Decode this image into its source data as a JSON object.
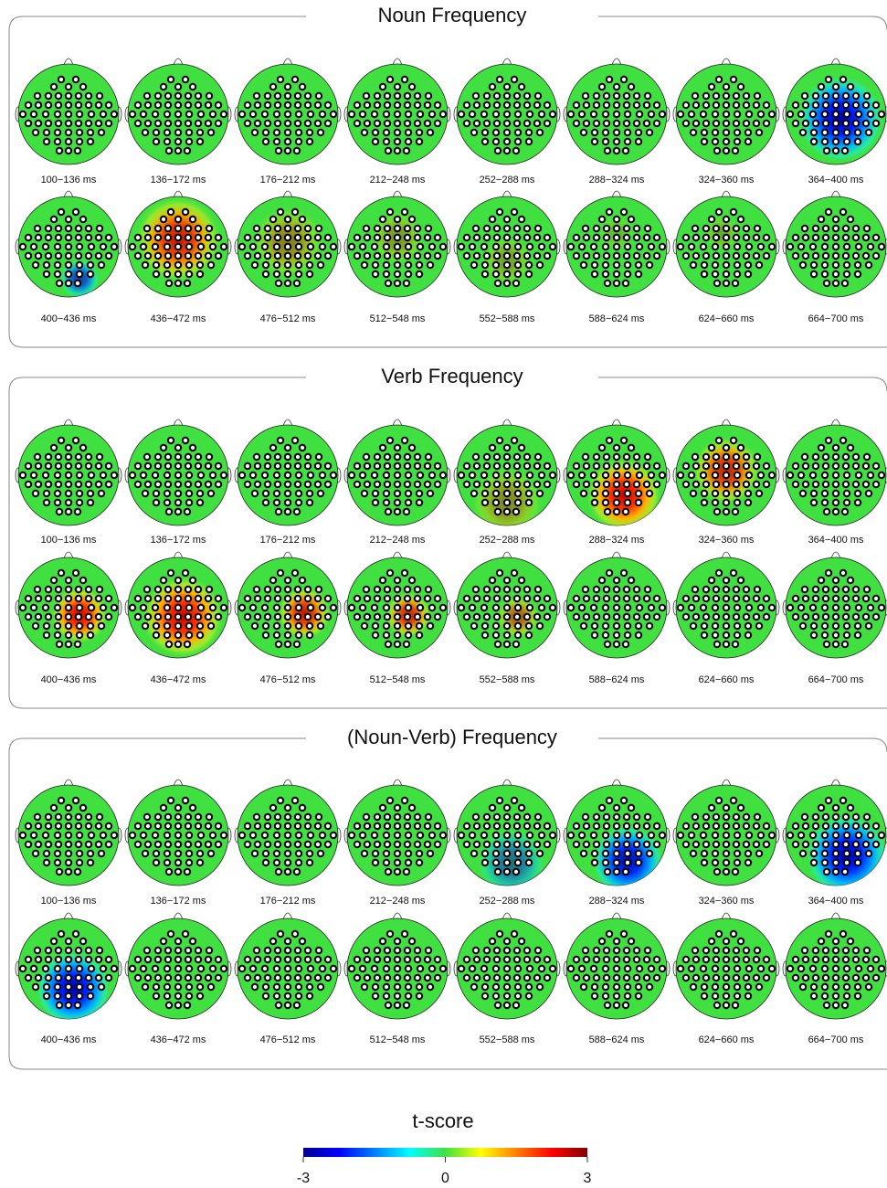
{
  "panels": [
    {
      "title": "Noun Frequency",
      "labels": [
        "100−136 ms",
        "136−172 ms",
        "176−212 ms",
        "212−248 ms",
        "252−288 ms",
        "288−324 ms",
        "324−360 ms",
        "364−400 ms",
        "400−436 ms",
        "436−472 ms",
        "476−512 ms",
        "512−548 ms",
        "552−588 ms",
        "588−624 ms",
        "624−660 ms",
        "664−700 ms"
      ]
    },
    {
      "title": "Verb Frequency",
      "labels": [
        "100−136 ms",
        "136−172 ms",
        "176−212 ms",
        "212−248 ms",
        "252−288 ms",
        "288−324 ms",
        "324−360 ms",
        "364−400 ms",
        "400−436 ms",
        "436−472 ms",
        "476−512 ms",
        "512−548 ms",
        "552−588 ms",
        "588−624 ms",
        "624−660 ms",
        "664−700 ms"
      ]
    },
    {
      "title": "(Noun-Verb) Frequency",
      "labels": [
        "100−136 ms",
        "136−172 ms",
        "176−212 ms",
        "212−248 ms",
        "252−288 ms",
        "288−324 ms",
        "324−360 ms",
        "364−400 ms",
        "400−436 ms",
        "436−472 ms",
        "476−512 ms",
        "512−548 ms",
        "552−588 ms",
        "588−624 ms",
        "624−660 ms",
        "664−700 ms"
      ]
    }
  ],
  "colorbar": {
    "title": "t-score",
    "lim": [
      -3,
      3
    ],
    "ticks": [
      -3,
      0,
      3
    ]
  }
}
